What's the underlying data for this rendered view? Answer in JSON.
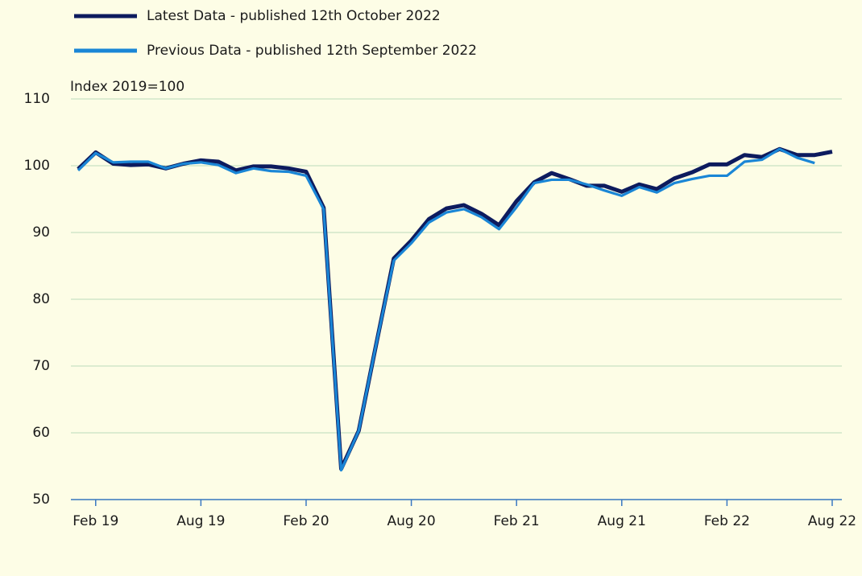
{
  "chart_data": {
    "type": "line",
    "y_label": "Index 2019=100",
    "categories": [
      null,
      "Feb 19",
      null,
      null,
      null,
      null,
      null,
      "Aug 19",
      null,
      null,
      null,
      null,
      null,
      "Feb 20",
      null,
      null,
      null,
      null,
      null,
      "Aug 20",
      null,
      null,
      null,
      null,
      null,
      "Feb 21",
      null,
      null,
      null,
      null,
      null,
      "Aug 21",
      null,
      null,
      null,
      null,
      null,
      "Feb 22",
      null,
      null,
      null,
      null,
      null,
      "Aug 22"
    ],
    "series": [
      {
        "name": "Latest Data - published 12th October 2022",
        "color": "#0d1b5e",
        "values": [
          99.5,
          102,
          100.3,
          100.1,
          100.2,
          99.6,
          100.3,
          100.8,
          100.6,
          99.3,
          99.9,
          99.9,
          99.6,
          99.1,
          93.7,
          54.6,
          60.3,
          73.3,
          86.1,
          88.8,
          92.0,
          93.6,
          94.1,
          92.8,
          91.1,
          94.7,
          97.5,
          98.9,
          98.0,
          97.0,
          97.0,
          96.1,
          97.2,
          96.5,
          98.1,
          99.0,
          100.2,
          100.2,
          101.6,
          101.3,
          102.5,
          101.6,
          101.6,
          102.1
        ]
      },
      {
        "name": "Previous Data - published 12th September 2022",
        "color": "#1a86d6",
        "values": [
          99.3,
          101.9,
          100.5,
          100.6,
          100.6,
          99.6,
          100.3,
          100.5,
          100.1,
          98.9,
          99.6,
          99.2,
          99.1,
          98.5,
          93.5,
          54.4,
          60.3,
          73.3,
          85.8,
          88.4,
          91.5,
          93.0,
          93.5,
          92.3,
          90.5,
          93.8,
          97.4,
          97.9,
          97.9,
          97.2,
          96.3,
          95.5,
          96.8,
          96.0,
          97.4,
          98.0,
          98.5,
          98.5,
          100.6,
          100.9,
          102.5,
          101.2,
          100.4,
          null
        ]
      }
    ],
    "ylim": [
      50,
      110
    ],
    "yticks": [
      50,
      60,
      70,
      80,
      90,
      100,
      110
    ],
    "grid": true,
    "grid_color": "#c9e2c4"
  }
}
